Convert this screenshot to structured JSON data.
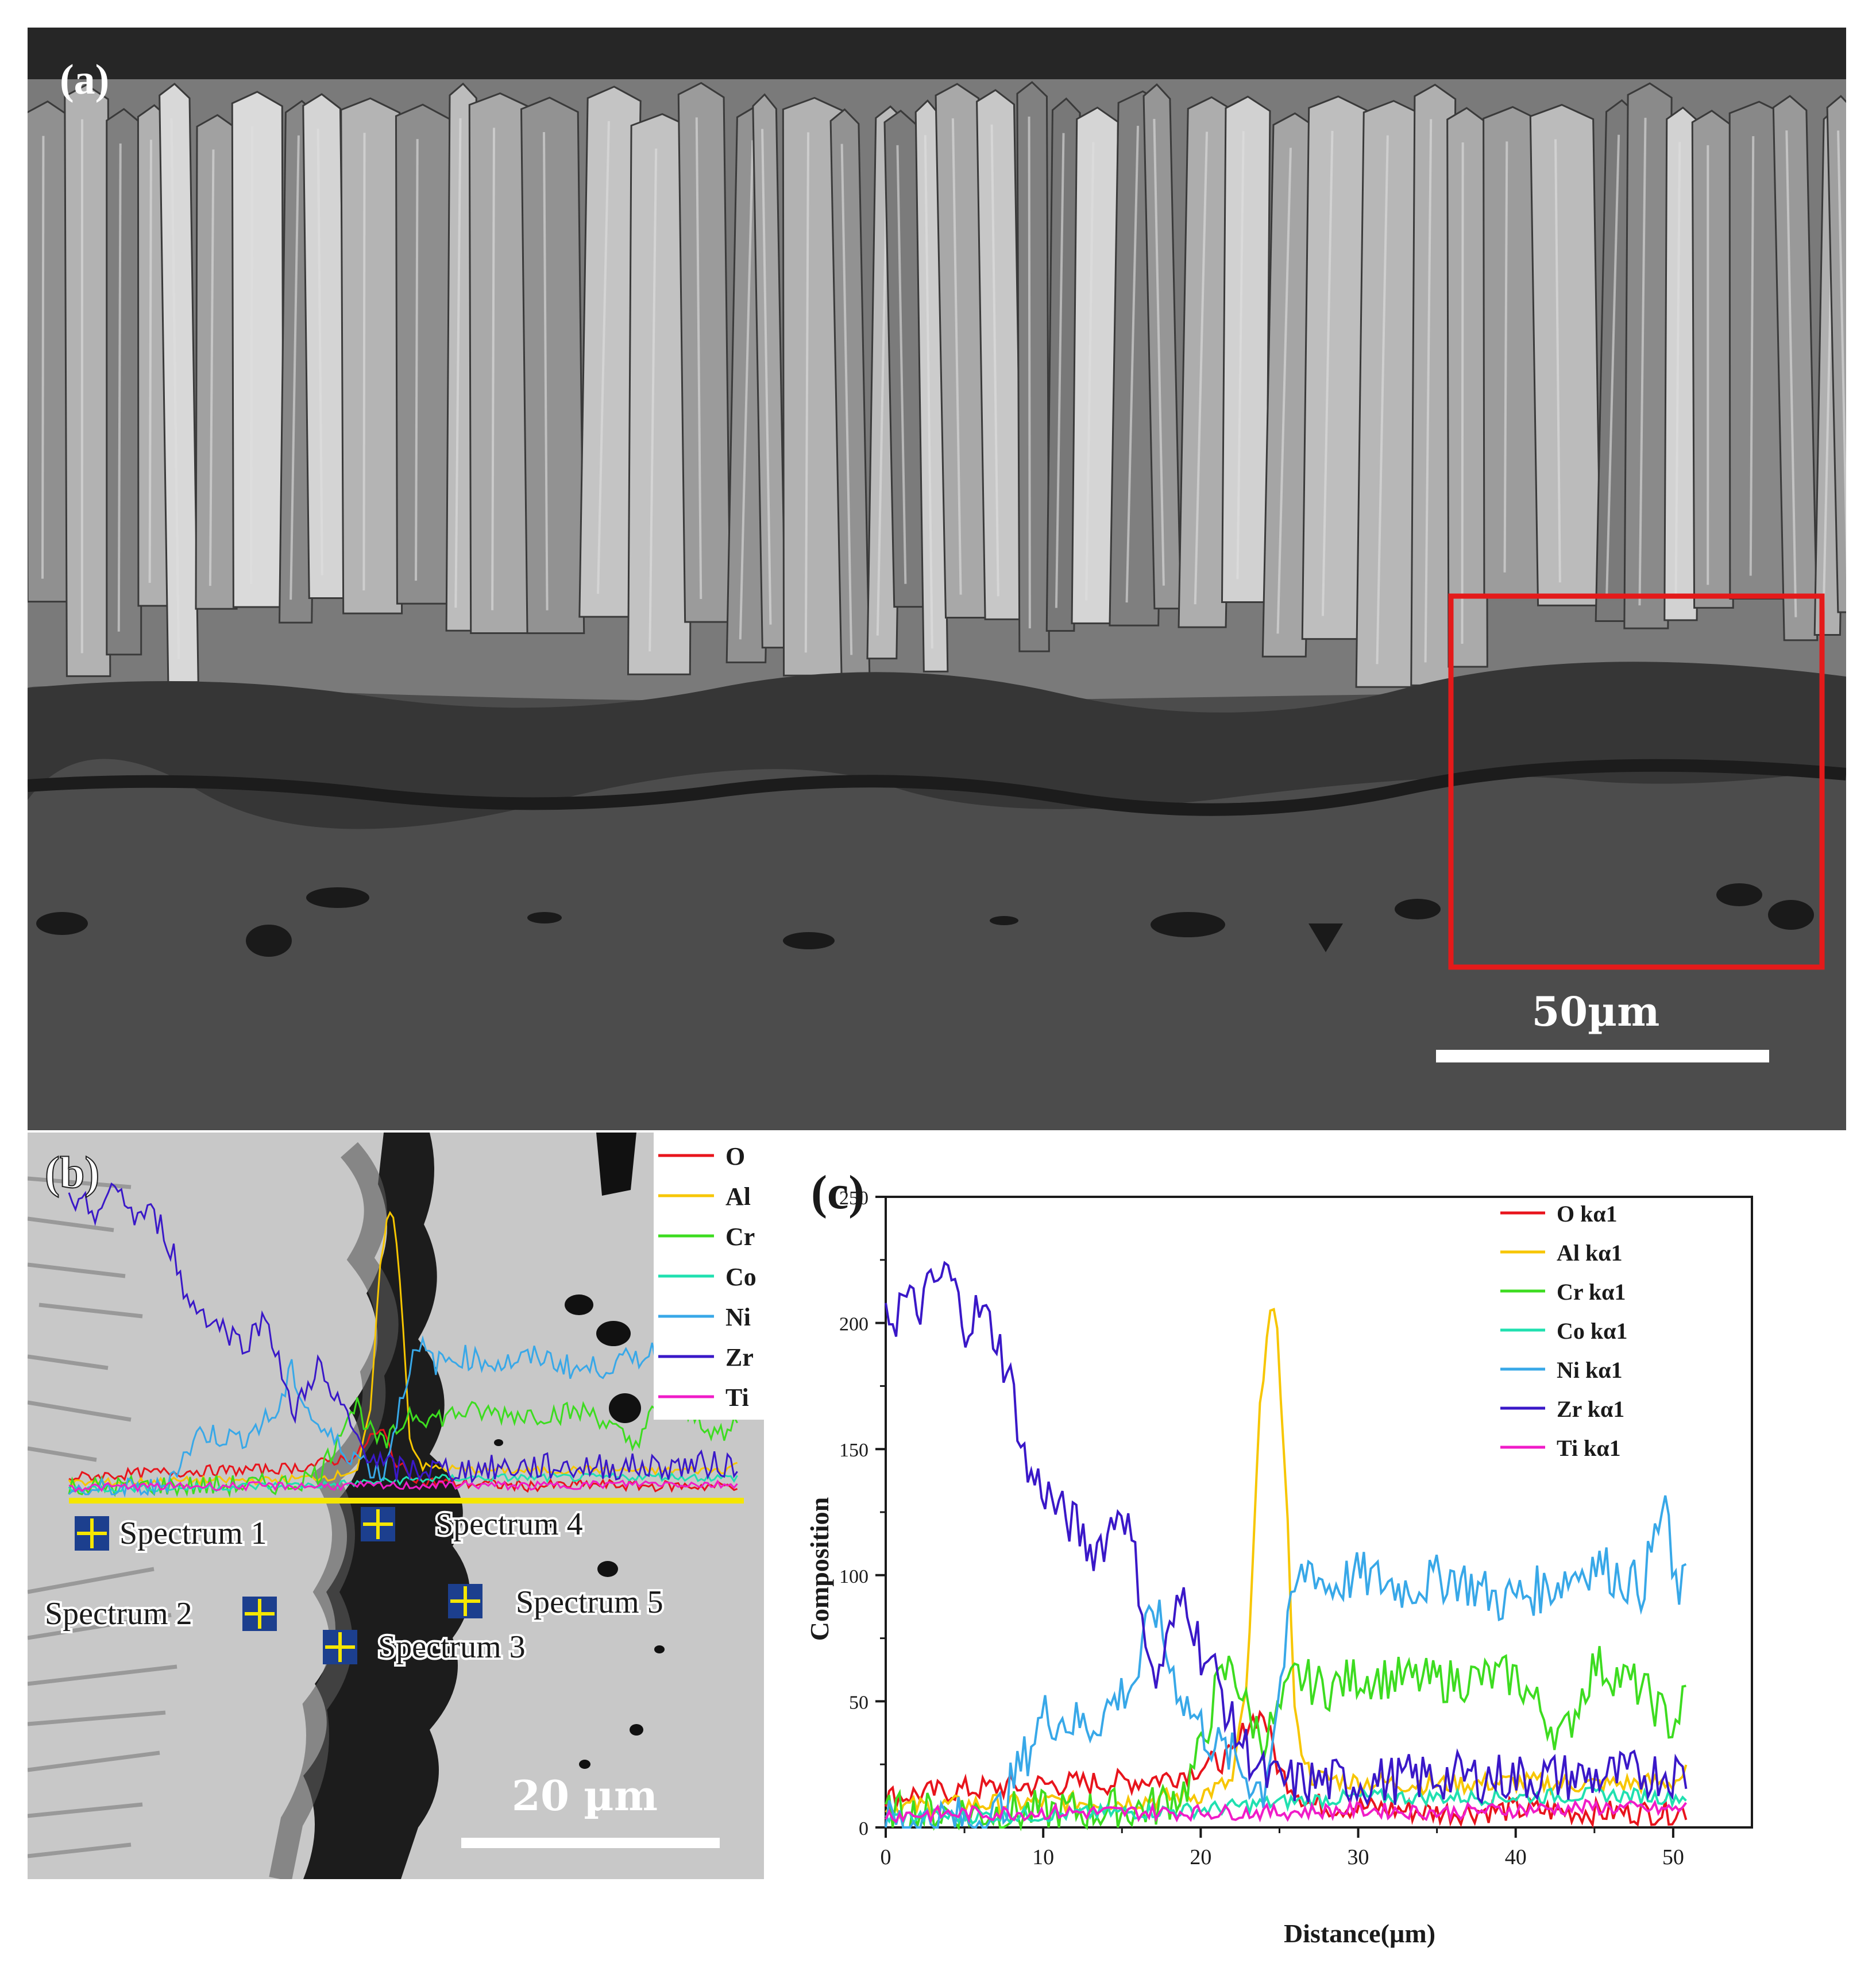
{
  "panel_a": {
    "label": "(a)",
    "scale_bar": "50µm"
  },
  "panel_b": {
    "label": "(b)",
    "scale_bar": "20 µm",
    "legend": [
      "O",
      "Al",
      "Cr",
      "Co",
      "Ni",
      "Zr",
      "Ti"
    ],
    "spectra": [
      "Spectrum 1",
      "Spectrum 2",
      "Spectrum 3",
      "Spectrum 4",
      "Spectrum 5"
    ]
  },
  "panel_c": {
    "label": "(c)",
    "chart_data": {
      "type": "line",
      "xlabel": "Distance(µm)",
      "ylabel": "Composition",
      "xlim": [
        0,
        55
      ],
      "ylim": [
        0,
        250
      ],
      "xticks": [
        0,
        10,
        20,
        30,
        40,
        50
      ],
      "yticks": [
        0,
        50,
        100,
        150,
        200,
        250
      ],
      "legend_position": "top-right",
      "grid": false,
      "series": [
        {
          "name": "O kα1",
          "color": "#e8141c",
          "x": [
            0,
            5,
            10,
            15,
            18,
            20,
            22,
            23,
            24,
            25,
            27,
            30,
            35,
            40,
            45,
            50,
            51
          ],
          "y": [
            12,
            15,
            17,
            18,
            20,
            24,
            28,
            42,
            45,
            22,
            9,
            8,
            6,
            7,
            6,
            6,
            7
          ]
        },
        {
          "name": "Al kα1",
          "color": "#f7c600",
          "x": [
            0,
            5,
            10,
            15,
            20,
            22,
            23,
            23.7,
            24.3,
            24.8,
            25.4,
            26,
            27,
            30,
            35,
            40,
            45,
            50,
            51
          ],
          "y": [
            8,
            9,
            10,
            10,
            13,
            18,
            60,
            160,
            205,
            200,
            140,
            40,
            20,
            18,
            17,
            18,
            17,
            18,
            22
          ]
        },
        {
          "name": "Cr kα1",
          "color": "#3ddc20",
          "x": [
            0,
            5,
            10,
            15,
            17,
            19,
            20,
            21,
            22,
            23,
            24,
            25,
            26,
            28,
            30,
            35,
            40,
            43,
            45,
            48,
            50,
            51
          ],
          "y": [
            5,
            6,
            6,
            7,
            8,
            15,
            30,
            55,
            65,
            45,
            35,
            45,
            60,
            55,
            60,
            58,
            60,
            35,
            65,
            55,
            40,
            55
          ]
        },
        {
          "name": "Co kα1",
          "color": "#20e0b0",
          "x": [
            0,
            10,
            20,
            25,
            30,
            35,
            40,
            45,
            50,
            51
          ],
          "y": [
            4,
            5,
            7,
            10,
            12,
            12,
            12,
            13,
            12,
            12
          ]
        },
        {
          "name": "Ni kα1",
          "color": "#38a8e8",
          "x": [
            0,
            5,
            7,
            9,
            10,
            13,
            16,
            17,
            18,
            19,
            20,
            21,
            22,
            23,
            24,
            25,
            26,
            27,
            28,
            30,
            33,
            36,
            39,
            42,
            45,
            48,
            49.5,
            50,
            51
          ],
          "y": [
            2,
            3,
            4,
            30,
            45,
            40,
            60,
            90,
            65,
            50,
            40,
            32,
            28,
            20,
            15,
            55,
            95,
            105,
            95,
            100,
            95,
            100,
            90,
            95,
            105,
            95,
            130,
            95,
            95
          ]
        },
        {
          "name": "Zr kα1",
          "color": "#3a18c8",
          "x": [
            0,
            0.5,
            1,
            2,
            3,
            4,
            5,
            6,
            7,
            8,
            9,
            10,
            11,
            12,
            13,
            14,
            15,
            16,
            17,
            18,
            19,
            20,
            21,
            22,
            23,
            24,
            25,
            27,
            30,
            35,
            40,
            45,
            50,
            51
          ],
          "y": [
            210,
            200,
            210,
            205,
            215,
            220,
            200,
            205,
            195,
            175,
            140,
            135,
            125,
            120,
            110,
            115,
            130,
            100,
            55,
            75,
            95,
            70,
            60,
            40,
            30,
            20,
            18,
            18,
            18,
            20,
            20,
            20,
            22,
            20
          ]
        },
        {
          "name": "Ti kα1",
          "color": "#f01cc8",
          "x": [
            0,
            10,
            20,
            25,
            30,
            35,
            40,
            45,
            50,
            51
          ],
          "y": [
            5,
            6,
            6,
            6,
            7,
            6,
            7,
            8,
            7,
            8
          ]
        }
      ]
    }
  }
}
